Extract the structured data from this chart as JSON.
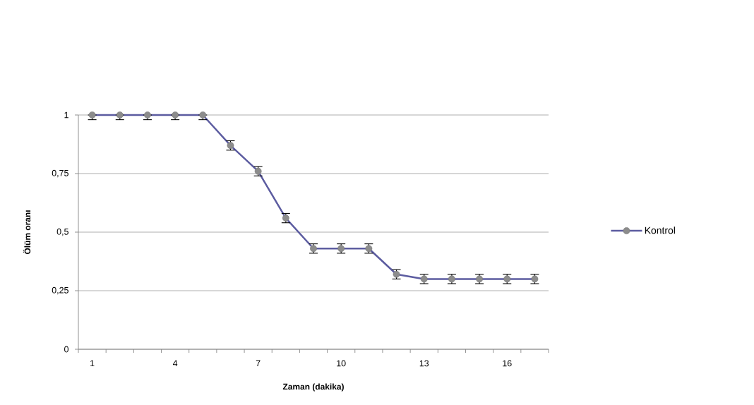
{
  "chart_data": {
    "type": "line",
    "xlabel": "Zaman (dakika)",
    "ylabel": "Ölüm oranı",
    "categories": [
      "1",
      null,
      null,
      "4",
      null,
      null,
      "7",
      null,
      null,
      "10",
      null,
      null,
      "13",
      null,
      null,
      "16",
      null
    ],
    "series": [
      {
        "name": "Kontrol",
        "color": "#5c5ca0",
        "values": [
          1,
          1,
          1,
          1,
          1,
          0.87,
          0.76,
          0.56,
          0.43,
          0.43,
          0.43,
          0.32,
          0.3,
          0.3,
          0.3,
          0.3,
          0.3
        ],
        "errors": [
          [
            0.98,
            1
          ],
          [
            0.98,
            1
          ],
          [
            0.98,
            1
          ],
          [
            0.98,
            1
          ],
          [
            0.98,
            1
          ],
          0.02,
          0.02,
          0.02,
          0.02,
          0.02,
          0.02,
          0.02,
          0.02,
          0.02,
          0.02,
          0.02,
          0.02
        ]
      }
    ],
    "ylim": [
      0,
      1
    ],
    "yticks": [
      0,
      {
        "value": 0.25,
        "label": "0,25"
      },
      {
        "value": 0.5,
        "label": "0,5"
      },
      {
        "value": 0.75,
        "label": "0,75"
      },
      1
    ],
    "grid": "y",
    "legend": "right",
    "marker": "circle"
  }
}
